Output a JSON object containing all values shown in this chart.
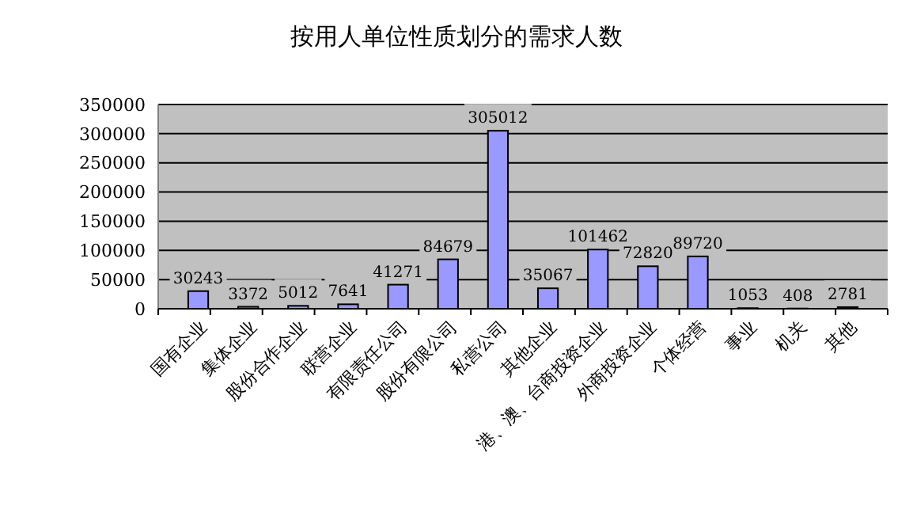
{
  "chart_data": {
    "type": "bar",
    "title": "按用人单位性质划分的需求人数",
    "categories": [
      "国有企业",
      "集体企业",
      "股份合作企业",
      "联营企业",
      "有限责任公司",
      "股份有限公司",
      "私营公司",
      "其他企业",
      "港、澳、台商投资企业",
      "外商投资企业",
      "个体经营",
      "事业",
      "机关",
      "其他"
    ],
    "values": [
      30243,
      3372,
      5012,
      7641,
      41271,
      84679,
      305012,
      35067,
      101462,
      72820,
      89720,
      1053,
      408,
      2781
    ],
    "color": "#9999ff",
    "ylim": [
      0,
      350000
    ],
    "yticks": [
      0,
      50000,
      100000,
      150000,
      200000,
      250000,
      300000,
      350000
    ],
    "grid": "y",
    "data_labels": true
  }
}
